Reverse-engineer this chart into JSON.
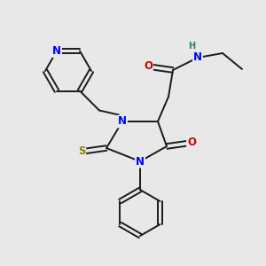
{
  "bg_color": "#e8e8e8",
  "bond_color": "#1a1a1a",
  "N_color": "#0000ff",
  "O_color": "#cc0000",
  "S_color": "#888800",
  "H_color": "#337777",
  "font_size": 8.5,
  "bond_width": 1.4,
  "fig_size": [
    3.0,
    3.0
  ],
  "dpi": 100,
  "xlim": [
    0,
    300
  ],
  "ylim": [
    0,
    300
  ]
}
